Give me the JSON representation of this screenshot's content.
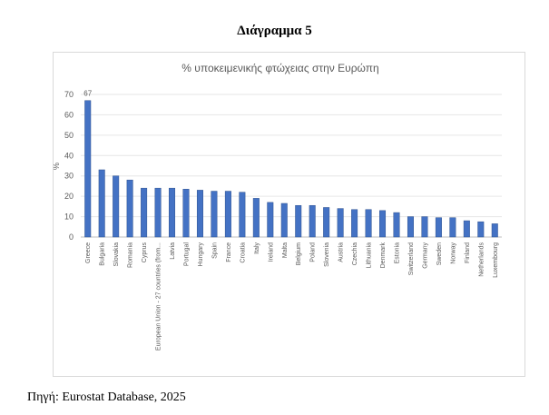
{
  "heading": "Διάγραμμα 5",
  "source": "Πηγή: Eurostat Database, 2025",
  "chart_data": {
    "type": "bar",
    "title": "% υποκειμενικής φτώχειας στην Ευρώπη",
    "ylabel": "%",
    "xlabel": "",
    "ylim": [
      0,
      70
    ],
    "yticks": [
      0,
      10,
      20,
      30,
      40,
      50,
      60,
      70
    ],
    "grid": true,
    "bar_color": "#4472c4",
    "categories": [
      "Greece",
      "Bulgaria",
      "Slovakia",
      "Romania",
      "Cyprus",
      "European Union - 27 countries (from...",
      "Latvia",
      "Portugal",
      "Hungary",
      "Spain",
      "France",
      "Croatia",
      "Italy",
      "Ireland",
      "Malta",
      "Belgium",
      "Poland",
      "Slovenia",
      "Austria",
      "Czechia",
      "Lithuania",
      "Denmark",
      "Estonia",
      "Switzerland",
      "Germany",
      "Sweden",
      "Norway",
      "Finland",
      "Netherlands",
      "Luxembourg"
    ],
    "values": [
      67,
      33,
      30,
      28,
      24,
      24,
      24,
      23.5,
      23,
      22.5,
      22.5,
      22,
      19,
      17,
      16.5,
      15.5,
      15.5,
      14.5,
      14,
      13.5,
      13.5,
      13,
      12,
      10,
      10,
      9.5,
      9.5,
      8,
      7.5,
      6.5
    ],
    "data_labels": [
      {
        "category": "Greece",
        "text": "67"
      }
    ]
  }
}
